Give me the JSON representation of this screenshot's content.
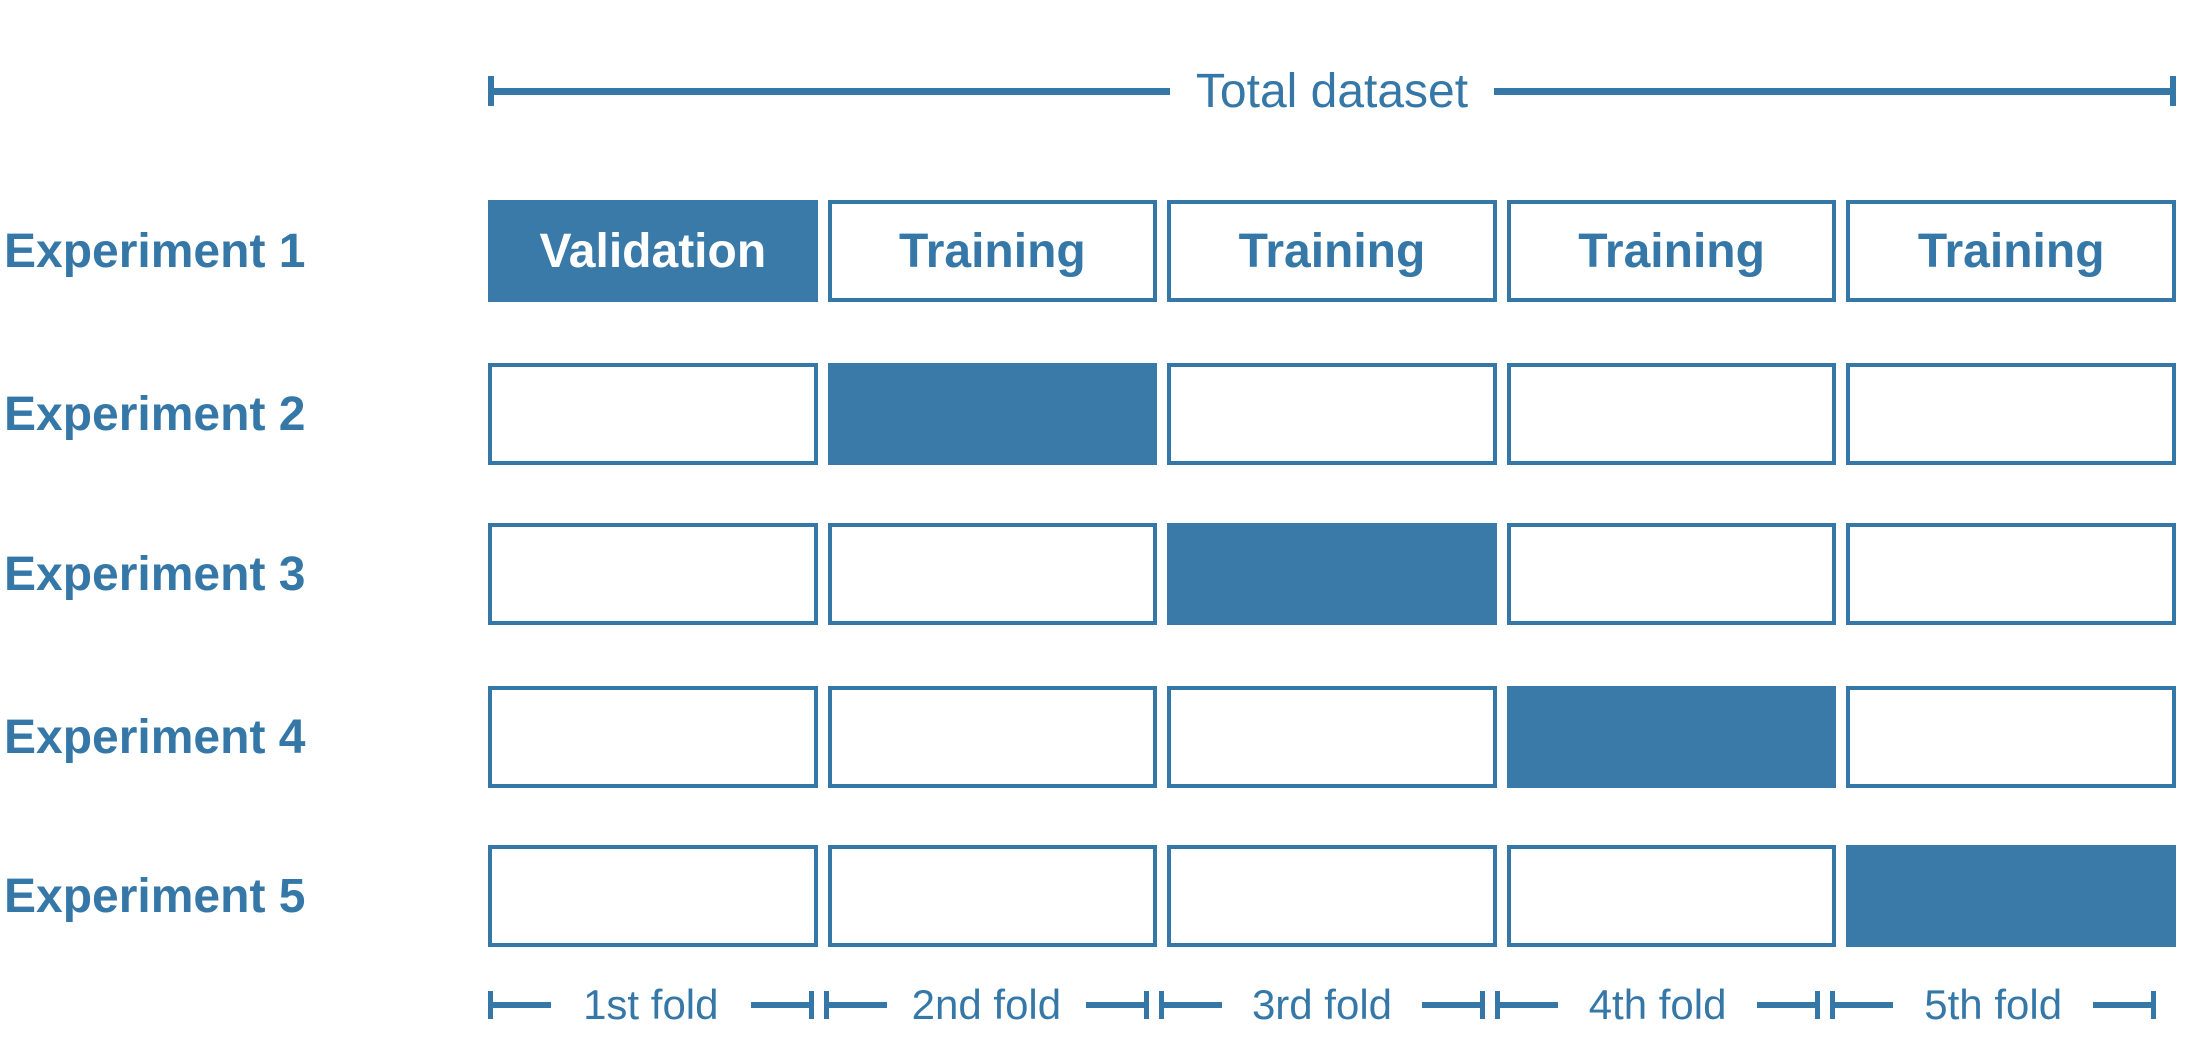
{
  "colors": {
    "accent": "#3578a8",
    "fill": "#3a7aa9",
    "validation_text": "#ffffff"
  },
  "header": {
    "total_dataset_label": "Total dataset"
  },
  "experiments": [
    {
      "label": "Experiment 1",
      "validation_fold": 1,
      "cells": [
        {
          "text": "Validation",
          "filled": true
        },
        {
          "text": "Training",
          "filled": false
        },
        {
          "text": "Training",
          "filled": false
        },
        {
          "text": "Training",
          "filled": false
        },
        {
          "text": "Training",
          "filled": false
        }
      ]
    },
    {
      "label": "Experiment 2",
      "validation_fold": 2,
      "cells": [
        {
          "text": "",
          "filled": false
        },
        {
          "text": "",
          "filled": true
        },
        {
          "text": "",
          "filled": false
        },
        {
          "text": "",
          "filled": false
        },
        {
          "text": "",
          "filled": false
        }
      ]
    },
    {
      "label": "Experiment 3",
      "validation_fold": 3,
      "cells": [
        {
          "text": "",
          "filled": false
        },
        {
          "text": "",
          "filled": false
        },
        {
          "text": "",
          "filled": true
        },
        {
          "text": "",
          "filled": false
        },
        {
          "text": "",
          "filled": false
        }
      ]
    },
    {
      "label": "Experiment 4",
      "validation_fold": 4,
      "cells": [
        {
          "text": "",
          "filled": false
        },
        {
          "text": "",
          "filled": false
        },
        {
          "text": "",
          "filled": false
        },
        {
          "text": "",
          "filled": true
        },
        {
          "text": "",
          "filled": false
        }
      ]
    },
    {
      "label": "Experiment 5",
      "validation_fold": 5,
      "cells": [
        {
          "text": "",
          "filled": false
        },
        {
          "text": "",
          "filled": false
        },
        {
          "text": "",
          "filled": false
        },
        {
          "text": "",
          "filled": false
        },
        {
          "text": "",
          "filled": true
        }
      ]
    }
  ],
  "fold_labels": [
    "1st fold",
    "2nd fold",
    "3rd fold",
    "4th fold",
    "5th fold"
  ]
}
